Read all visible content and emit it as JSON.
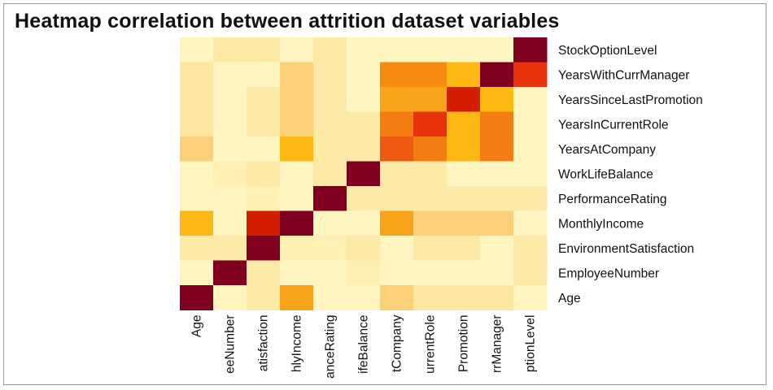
{
  "chart_data": {
    "type": "heatmap",
    "title": "Heatmap correlation between attrition dataset variables",
    "variables": [
      "Age",
      "EmployeeNumber",
      "EnvironmentSatisfaction",
      "MonthlyIncome",
      "PerformanceRating",
      "WorkLifeBalance",
      "YearsAtCompany",
      "YearsInCurrentRole",
      "YearsSinceLastPromotion",
      "YearsWithCurrManager",
      "StockOptionLevel"
    ],
    "column_labels_visible": [
      "Age",
      "eeNumber",
      "atisfaction",
      "hlyIncome",
      "anceRating",
      "ifeBalance",
      "tCompany",
      "urrentRole",
      "Promotion",
      "rrManager",
      "ptionLevel"
    ],
    "row_order_top_to_bottom": [
      "StockOptionLevel",
      "YearsWithCurrManager",
      "YearsSinceLastPromotion",
      "YearsInCurrentRole",
      "YearsAtCompany",
      "WorkLifeBalance",
      "PerformanceRating",
      "MonthlyIncome",
      "EnvironmentSatisfaction",
      "EmployeeNumber",
      "Age"
    ],
    "matrix": [
      [
        1.0,
        0.1,
        0.2,
        0.55,
        0.1,
        0.1,
        0.35,
        0.22,
        0.22,
        0.22,
        0.1
      ],
      [
        0.1,
        1.0,
        0.2,
        0.1,
        0.1,
        0.15,
        0.1,
        0.1,
        0.1,
        0.1,
        0.2
      ],
      [
        0.2,
        0.2,
        1.0,
        0.15,
        0.15,
        0.2,
        0.1,
        0.2,
        0.2,
        0.1,
        0.2
      ],
      [
        0.55,
        0.1,
        0.15,
        1.0,
        0.1,
        0.1,
        0.55,
        0.35,
        0.35,
        0.35,
        0.1
      ],
      [
        0.1,
        0.1,
        0.15,
        0.1,
        1.0,
        0.2,
        0.2,
        0.2,
        0.2,
        0.2,
        0.2
      ],
      [
        0.1,
        0.15,
        0.2,
        0.1,
        0.2,
        1.0,
        0.2,
        0.2,
        0.1,
        0.1,
        0.1
      ],
      [
        0.35,
        0.1,
        0.1,
        0.55,
        0.2,
        0.2,
        1.0,
        0.72,
        0.57,
        0.72,
        0.1
      ],
      [
        0.22,
        0.1,
        0.2,
        0.35,
        0.2,
        0.2,
        0.72,
        1.0,
        0.57,
        0.72,
        0.1
      ],
      [
        0.22,
        0.1,
        0.2,
        0.35,
        0.2,
        0.1,
        0.57,
        0.72,
        1.0,
        0.57,
        0.1
      ],
      [
        0.22,
        0.1,
        0.1,
        0.35,
        0.2,
        0.1,
        0.72,
        0.72,
        0.57,
        1.0,
        0.1
      ],
      [
        0.1,
        0.2,
        0.2,
        0.1,
        0.2,
        0.1,
        0.1,
        0.1,
        0.1,
        0.1,
        1.0
      ]
    ],
    "color_scale": {
      "name": "heat",
      "stops": [
        {
          "v": 0.0,
          "color": "#fffbd6"
        },
        {
          "v": 0.1,
          "color": "#fff5c0"
        },
        {
          "v": 0.2,
          "color": "#fde9a6"
        },
        {
          "v": 0.35,
          "color": "#fcd079"
        },
        {
          "v": 0.55,
          "color": "#fdb813"
        },
        {
          "v": 0.57,
          "color": "#fdb813"
        },
        {
          "v": 0.72,
          "color": "#f68b12"
        },
        {
          "v": 0.85,
          "color": "#e8340c"
        },
        {
          "v": 0.92,
          "color": "#d41e00"
        },
        {
          "v": 1.0,
          "color": "#800020"
        }
      ]
    },
    "overrides": [
      {
        "row": "YearsWithCurrManager",
        "col": "YearsWithCurrManager",
        "value": 1.0,
        "color": "#800020"
      },
      {
        "row": "YearsWithCurrManager",
        "col": "YearsAtCompany",
        "color": "#f68b12"
      },
      {
        "row": "YearsWithCurrManager",
        "col": "YearsInCurrentRole",
        "color": "#f68b12"
      },
      {
        "row": "YearsWithCurrManager",
        "col": "YearsSinceLastPromotion",
        "color": "#fdb813"
      },
      {
        "row": "YearsSinceLastPromotion",
        "col": "YearsAtCompany",
        "color": "#f9a31a"
      },
      {
        "row": "YearsSinceLastPromotion",
        "col": "YearsInCurrentRole",
        "color": "#f9a31a"
      },
      {
        "row": "YearsSinceLastPromotion",
        "col": "YearsWithCurrManager",
        "color": "#fdb813"
      },
      {
        "row": "YearsInCurrentRole",
        "col": "YearsAtCompany",
        "color": "#f47c12"
      },
      {
        "row": "YearsInCurrentRole",
        "col": "YearsSinceLastPromotion",
        "color": "#fdb813"
      },
      {
        "row": "YearsInCurrentRole",
        "col": "YearsWithCurrManager",
        "color": "#f47c12"
      },
      {
        "row": "YearsAtCompany",
        "col": "YearsInCurrentRole",
        "color": "#f47c12"
      },
      {
        "row": "YearsAtCompany",
        "col": "YearsSinceLastPromotion",
        "color": "#fdb813"
      },
      {
        "row": "YearsAtCompany",
        "col": "YearsWithCurrManager",
        "color": "#f47c12"
      },
      {
        "row": "YearsAtCompany",
        "col": "MonthlyIncome",
        "color": "#fdb813"
      },
      {
        "row": "YearsWithCurrManager",
        "col": "StockOptionLevel",
        "color": "#e8340c"
      },
      {
        "row": "YearsSinceLastPromotion",
        "col": "YearsSinceLastPromotion",
        "color": "#d41e00"
      },
      {
        "row": "YearsInCurrentRole",
        "col": "YearsInCurrentRole",
        "color": "#e8340c"
      },
      {
        "row": "YearsAtCompany",
        "col": "YearsAtCompany",
        "color": "#ee5a0f"
      },
      {
        "row": "MonthlyIncome",
        "col": "EnvironmentSatisfaction",
        "color": "#d41e00"
      },
      {
        "row": "Age",
        "col": "MonthlyIncome",
        "color": "#f9a31a"
      },
      {
        "row": "MonthlyIncome",
        "col": "Age",
        "color": "#fdb813"
      },
      {
        "row": "MonthlyIncome",
        "col": "YearsAtCompany",
        "color": "#f9a31a"
      }
    ]
  }
}
